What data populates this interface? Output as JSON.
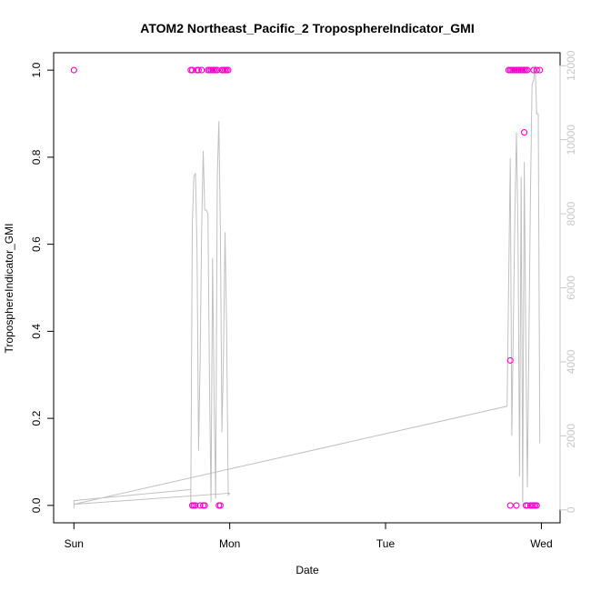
{
  "chart_data": {
    "type": "scatter",
    "title": "ATOM2 Northeast_Pacific_2 TroposphereIndicator_GMI",
    "xlabel": "Date",
    "ylabel": "TroposphereIndicator_GMI",
    "x_ticks": [
      {
        "label": "Sun",
        "day": 0
      },
      {
        "label": "Mon",
        "day": 1
      },
      {
        "label": "Tue",
        "day": 2
      },
      {
        "label": "Wed",
        "day": 3
      }
    ],
    "xlim": [
      -0.13,
      3.12
    ],
    "ylim": [
      -0.04,
      1.04
    ],
    "y_ticks": [
      0.0,
      0.2,
      0.4,
      0.6,
      0.8,
      1.0
    ],
    "y2_ticks": [
      0,
      2000,
      4000,
      6000,
      8000,
      10000,
      12000
    ],
    "y2lim": [
      -350,
      12350
    ],
    "grid": false,
    "colors": {
      "points": "#ff00cc",
      "altitude_line": "#c0c0c0",
      "right_axis": "#c8c8c8"
    },
    "series": [
      {
        "marker": "circle",
        "points": [
          [
            0.0,
            1.0
          ],
          [
            0.75,
            1.0
          ],
          [
            0.76,
            1.0
          ],
          [
            0.79,
            1.0
          ],
          [
            0.8,
            1.0
          ],
          [
            0.82,
            1.0
          ],
          [
            0.86,
            1.0
          ],
          [
            0.87,
            1.0
          ],
          [
            0.88,
            1.0
          ],
          [
            0.89,
            1.0
          ],
          [
            0.9,
            1.0
          ],
          [
            0.91,
            1.0
          ],
          [
            0.92,
            1.0
          ],
          [
            0.95,
            1.0
          ],
          [
            0.96,
            1.0
          ],
          [
            0.97,
            1.0
          ],
          [
            0.98,
            1.0
          ],
          [
            0.99,
            1.0
          ],
          [
            0.76,
            0.0
          ],
          [
            0.77,
            0.0
          ],
          [
            0.78,
            0.0
          ],
          [
            0.81,
            0.0
          ],
          [
            0.83,
            0.0
          ],
          [
            0.84,
            0.0
          ],
          [
            0.93,
            0.0
          ],
          [
            0.94,
            0.0
          ],
          [
            2.79,
            1.0
          ],
          [
            2.8,
            1.0
          ],
          [
            2.81,
            1.0
          ],
          [
            2.82,
            1.0
          ],
          [
            2.83,
            1.0
          ],
          [
            2.84,
            1.0
          ],
          [
            2.85,
            1.0
          ],
          [
            2.86,
            1.0
          ],
          [
            2.87,
            1.0
          ],
          [
            2.88,
            1.0
          ],
          [
            2.89,
            1.0
          ],
          [
            2.9,
            1.0
          ],
          [
            2.91,
            1.0
          ],
          [
            2.95,
            1.0
          ],
          [
            2.97,
            1.0
          ],
          [
            2.99,
            1.0
          ],
          [
            2.89,
            0.857
          ],
          [
            2.8,
            0.333
          ],
          [
            2.8,
            0.0
          ],
          [
            2.84,
            0.0
          ],
          [
            2.9,
            0.0
          ],
          [
            2.91,
            0.0
          ],
          [
            2.93,
            0.0
          ],
          [
            2.94,
            0.0
          ],
          [
            2.95,
            0.0
          ],
          [
            2.96,
            0.0
          ],
          [
            2.97,
            0.0
          ]
        ]
      },
      {
        "axis": "right",
        "style": "line",
        "points": [
          [
            0.0,
            50
          ],
          [
            0.0,
            250
          ],
          [
            0.75,
            550
          ],
          [
            0.75,
            50
          ],
          [
            0.76,
            7700
          ],
          [
            0.77,
            9000
          ],
          [
            0.78,
            9100
          ],
          [
            0.79,
            7000
          ],
          [
            0.8,
            1600
          ],
          [
            0.81,
            4000
          ],
          [
            0.82,
            7600
          ],
          [
            0.83,
            9700
          ],
          [
            0.84,
            8100
          ],
          [
            0.85,
            8100
          ],
          [
            0.86,
            8000
          ],
          [
            0.87,
            3500
          ],
          [
            0.88,
            200
          ],
          [
            0.89,
            6800
          ],
          [
            0.9,
            3000
          ],
          [
            0.91,
            300
          ],
          [
            0.92,
            9000
          ],
          [
            0.93,
            10500
          ],
          [
            0.94,
            7500
          ],
          [
            0.95,
            2100
          ],
          [
            0.96,
            4200
          ],
          [
            0.97,
            7500
          ],
          [
            0.98,
            5000
          ],
          [
            0.99,
            400
          ],
          [
            1.0,
            450
          ],
          [
            0.0,
            150
          ],
          [
            2.78,
            2800
          ],
          [
            2.8,
            9500
          ],
          [
            2.81,
            2000
          ],
          [
            2.83,
            8000
          ],
          [
            2.84,
            10200
          ],
          [
            2.85,
            7500
          ],
          [
            2.86,
            900
          ],
          [
            2.87,
            9000
          ],
          [
            2.88,
            200
          ],
          [
            2.89,
            9400
          ],
          [
            2.9,
            4600
          ],
          [
            2.91,
            600
          ],
          [
            2.93,
            8500
          ],
          [
            2.94,
            11500
          ],
          [
            2.95,
            11600
          ],
          [
            2.96,
            12000
          ],
          [
            2.97,
            10700
          ],
          [
            2.98,
            10700
          ],
          [
            2.99,
            1800
          ]
        ]
      }
    ]
  }
}
